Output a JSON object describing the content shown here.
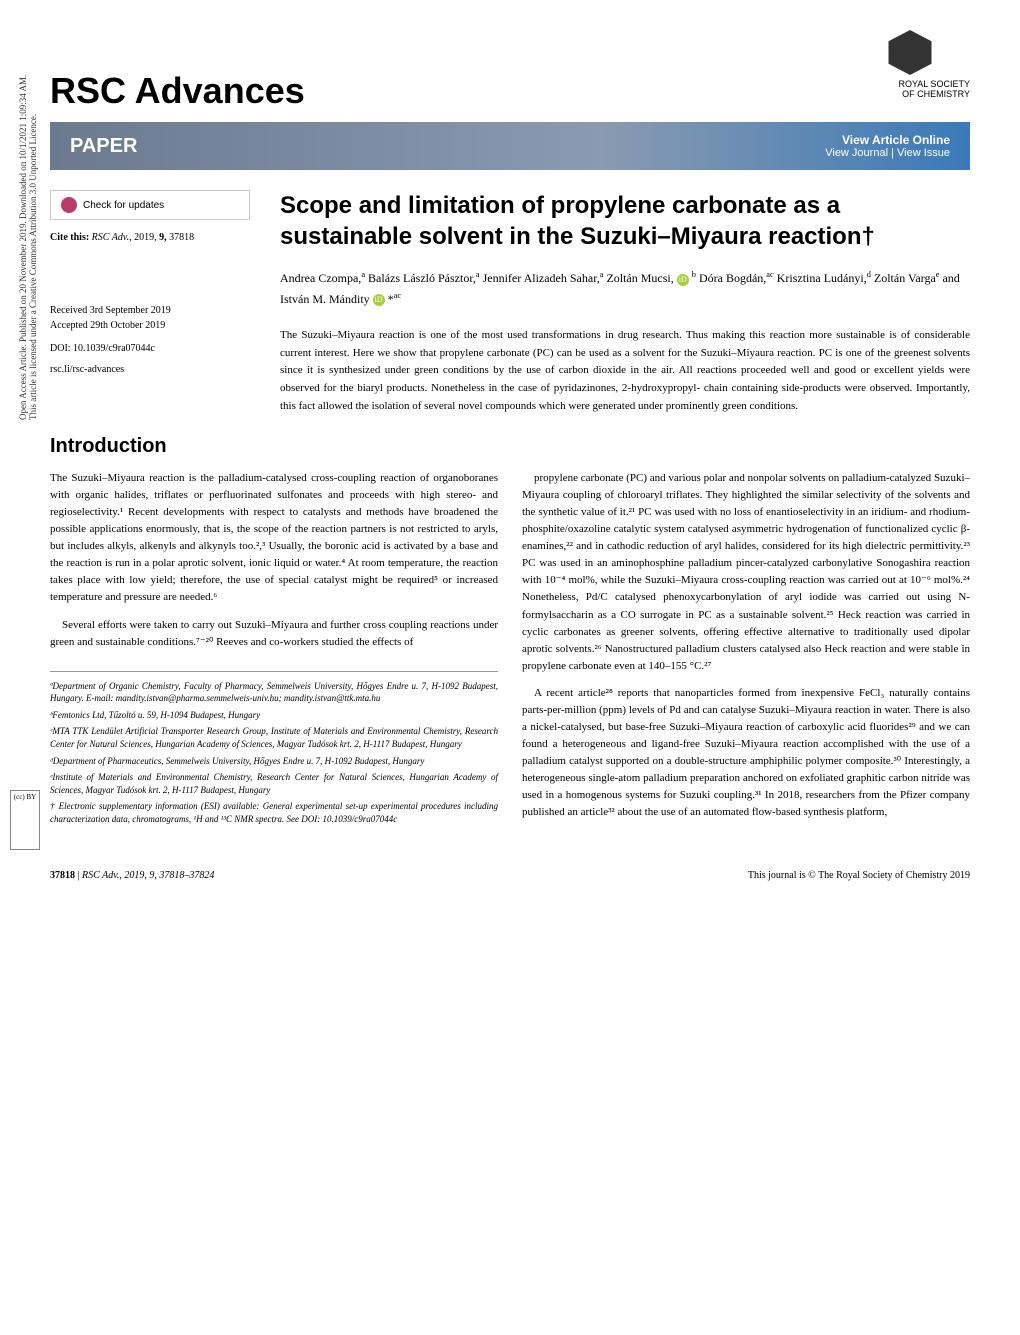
{
  "journal": {
    "name": "RSC Advances"
  },
  "publisher_logo": {
    "line1": "ROYAL SOCIETY",
    "line2": "OF CHEMISTRY"
  },
  "header": {
    "type_label": "PAPER",
    "view_online": "View Article Online",
    "view_journal": "View Journal",
    "view_issue": "View Issue"
  },
  "left_meta": {
    "check_updates": "Check for updates",
    "cite_prefix": "Cite this:",
    "cite_journal": "RSC Adv.",
    "cite_year": "2019,",
    "cite_vol": "9,",
    "cite_page": "37818",
    "received": "Received 3rd September 2019",
    "accepted": "Accepted 29th October 2019",
    "doi": "DOI: 10.1039/c9ra07044c",
    "rsc_link": "rsc.li/rsc-advances"
  },
  "sidebar": {
    "line1": "Open Access Article. Published on 20 November 2019. Downloaded on 10/1/2021 1:09:34 AM.",
    "line2": "This article is licensed under a Creative Commons Attribution 3.0 Unported Licence.",
    "cc": "(cc) BY"
  },
  "title": "Scope and limitation of propylene carbonate as a sustainable solvent in the Suzuki–Miyaura reaction†",
  "authors_html": "Andrea Czompa,<sup>a</sup> Balázs László Pásztor,<sup>a</sup> Jennifer Alizadeh Sahar,<sup>a</sup> Zoltán Mucsi, <span class='orcid'>iD</span> <sup>b</sup> Dóra Bogdán,<sup>ac</sup> Krisztina Ludányi,<sup>d</sup> Zoltán Varga<sup>e</sup> and István M. Mándity <span class='orcid'>iD</span> *<sup>ac</sup>",
  "abstract": "The Suzuki–Miyaura reaction is one of the most used transformations in drug research. Thus making this reaction more sustainable is of considerable current interest. Here we show that propylene carbonate (PC) can be used as a solvent for the Suzuki–Miyaura reaction. PC is one of the greenest solvents since it is synthesized under green conditions by the use of carbon dioxide in the air. All reactions proceeded well and good or excellent yields were observed for the biaryl products. Nonetheless in the case of pyridazinones, 2-hydroxypropyl- chain containing side-products were observed. Importantly, this fact allowed the isolation of several novel compounds which were generated under prominently green conditions.",
  "intro_heading": "Introduction",
  "intro_p1": "The Suzuki–Miyaura reaction is the palladium-catalysed cross-coupling reaction of organoboranes with organic halides, triflates or perfluorinated sulfonates and proceeds with high stereo- and regioselectivity.¹ Recent developments with respect to catalysts and methods have broadened the possible applications enormously, that is, the scope of the reaction partners is not restricted to aryls, but includes alkyls, alkenyls and alkynyls too.²,³ Usually, the boronic acid is activated by a base and the reaction is run in a polar aprotic solvent, ionic liquid or water.⁴ At room temperature, the reaction takes place with low yield; therefore, the use of special catalyst might be required⁵ or increased temperature and pressure are needed.⁶",
  "intro_p2": "Several efforts were taken to carry out Suzuki–Miyaura and further cross coupling reactions under green and sustainable conditions.⁷⁻²⁰ Reeves and co-workers studied the effects of",
  "intro_p3": "propylene carbonate (PC) and various polar and nonpolar solvents on palladium-catalyzed Suzuki–Miyaura coupling of chloroaryl triflates. They highlighted the similar selectivity of the solvents and the synthetic value of it.²¹ PC was used with no loss of enantioselectivity in an iridium- and rhodium-phosphite/oxazoline catalytic system catalysed asymmetric hydrogenation of functionalized cyclic β-enamines,²² and in cathodic reduction of aryl halides, considered for its high dielectric permittivity.²³ PC was used in an aminophosphine palladium pincer-catalyzed carbonylative Sonogashira reaction with 10⁻⁴ mol%, while the Suzuki–Miyaura cross-coupling reaction was carried out at 10⁻⁶ mol%.²⁴ Nonetheless, Pd/C catalysed phenoxycarbonylation of aryl iodide was carried out using N-formylsaccharin as a CO surrogate in PC as a sustainable solvent.²⁵ Heck reaction was carried in cyclic carbonates as greener solvents, offering effective alternative to traditionally used dipolar aprotic solvents.²⁶ Nanostructured palladium clusters catalysed also Heck reaction and were stable in propylene carbonate even at 140–155 °C.²⁷",
  "intro_p4": "A recent article²⁸ reports that nanoparticles formed from inexpensive FeCl₃ naturally contains parts-per-million (ppm) levels of Pd and can catalyse Suzuki–Miyaura reaction in water. There is also a nickel-catalysed, but base-free Suzuki–Miyaura reaction of carboxylic acid fluorides²⁹ and we can found a heterogeneous and ligand-free Suzuki–Miyaura reaction accomplished with the use of a palladium catalyst supported on a double-structure amphiphilic polymer composite.³⁰ Interestingly, a heterogeneous single-atom palladium preparation anchored on exfoliated graphitic carbon nitride was used in a homogenous systems for Suzuki coupling.³¹ In 2018, researchers from the Pfizer company published an article³² about the use of an automated flow-based synthesis platform,",
  "affils": {
    "a": "ªDepartment of Organic Chemistry, Faculty of Pharmacy, Semmelweis University, Hőgyes Endre u. 7, H-1092 Budapest, Hungary. E-mail: mandity.istvan@pharma.semmelweis-univ.hu; mandity.istvan@ttk.mta.hu",
    "b": "ᵇFemtonics Ltd, Tűzoltó u. 59, H-1094 Budapest, Hungary",
    "c": "ᶜMTA TTK Lendület Artificial Transporter Research Group, Institute of Materials and Environmental Chemistry, Research Center for Natural Sciences, Hungarian Academy of Sciences, Magyar Tudósok krt. 2, H-1117 Budapest, Hungary",
    "d": "ᵈDepartment of Pharmaceutics, Semmelweis University, Hőgyes Endre u. 7, H-1092 Budapest, Hungary",
    "e": "ᵉInstitute of Materials and Environmental Chemistry, Research Center for Natural Sciences, Hungarian Academy of Sciences, Magyar Tudósok krt. 2, H-1117 Budapest, Hungary",
    "esi": "† Electronic supplementary information (ESI) available: General experimental set-up experimental procedures including characterization data, chromatograms, ¹H and ¹³C NMR spectra. See DOI: 10.1039/c9ra07044c"
  },
  "footer": {
    "left_page": "37818",
    "left_sep": " | ",
    "left_cite": "RSC Adv., 2019, 9, 37818–37824",
    "right": "This journal is © The Royal Society of Chemistry 2019"
  },
  "colors": {
    "header_grad_start": "#6b7a8f",
    "header_grad_end": "#3a7ab8",
    "orcid_green": "#a6ce39",
    "crossmark_pink": "#b83a6f"
  }
}
